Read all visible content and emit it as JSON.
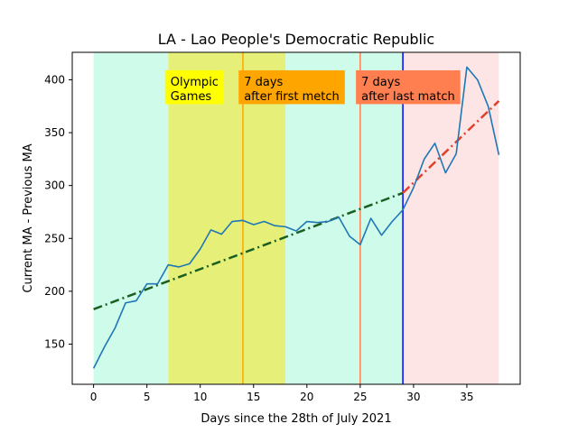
{
  "chart_data": {
    "type": "line",
    "title": "LA - Lao People's Democratic Republic",
    "xlabel": "Days since the 28th of July 2021",
    "ylabel": "Current MA - Previous MA",
    "xlim": [
      -2,
      40
    ],
    "ylim": [
      112,
      426
    ],
    "x_ticks": [
      0,
      5,
      10,
      15,
      20,
      25,
      30,
      35
    ],
    "y_ticks": [
      150,
      200,
      250,
      300,
      350,
      400
    ],
    "grid": false,
    "series": [
      {
        "x": [
          0,
          1,
          2,
          3,
          4,
          5,
          6,
          7,
          8,
          9,
          10,
          11,
          12,
          13,
          14,
          15,
          16,
          17,
          18,
          19,
          20,
          21,
          22,
          23,
          24,
          25,
          26,
          27,
          28,
          29,
          30,
          31,
          32,
          33,
          34,
          35,
          36,
          37,
          38
        ],
        "values": [
          127,
          147,
          165,
          189,
          191,
          207,
          207,
          225,
          223,
          226,
          240,
          258,
          254,
          266,
          267,
          263,
          266,
          262,
          261,
          257,
          266,
          265,
          266,
          270,
          252,
          244,
          269,
          253,
          266,
          277,
          298,
          325,
          340,
          312,
          330,
          412,
          400,
          375,
          329
        ],
        "color": "#1f77b4"
      }
    ],
    "trendlines": [
      {
        "x": [
          0,
          29
        ],
        "values": [
          183,
          293
        ],
        "color": "#1a5e20",
        "style": "dash-dot"
      },
      {
        "x": [
          29,
          38
        ],
        "values": [
          293,
          380
        ],
        "color": "#e0402a",
        "style": "dash-dot"
      }
    ],
    "regions": [
      {
        "x0": 0,
        "x1": 7,
        "color": "#cffbea"
      },
      {
        "x0": 7,
        "x1": 18,
        "color": "#e6ef78"
      },
      {
        "x0": 18,
        "x1": 29,
        "color": "#cffbea"
      },
      {
        "x0": 29,
        "x1": 38,
        "color": "#fde5e5"
      }
    ],
    "vlines": [
      {
        "x": 14,
        "color": "#ffa500"
      },
      {
        "x": 25,
        "color": "#ff7f50"
      },
      {
        "x": 29,
        "color": "#0000ff"
      }
    ],
    "annotations": [
      {
        "lines": [
          "Olympic",
          "Games"
        ],
        "x": 6.7,
        "y_top": 409,
        "y_bottom": 377,
        "bg": "#ffff00"
      },
      {
        "lines": [
          "7 days",
          "after first metch"
        ],
        "x": 13.6,
        "y_top": 409,
        "y_bottom": 377,
        "bg": "#ffa500"
      },
      {
        "lines": [
          "7 days",
          "after last match"
        ],
        "x": 24.6,
        "y_top": 409,
        "y_bottom": 377,
        "bg": "#ff7f50"
      }
    ]
  }
}
